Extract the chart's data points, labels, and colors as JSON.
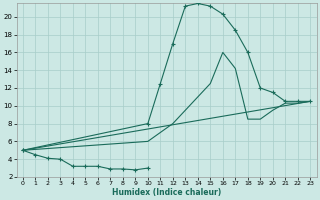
{
  "xlabel": "Humidex (Indice chaleur)",
  "bg_color": "#cce8e4",
  "grid_color": "#a8cec9",
  "line_color": "#1a6b5a",
  "xlim": [
    -0.5,
    23.5
  ],
  "ylim": [
    2,
    21.5
  ],
  "yticks": [
    2,
    4,
    6,
    8,
    10,
    12,
    14,
    16,
    18,
    20
  ],
  "xticks": [
    0,
    1,
    2,
    3,
    4,
    5,
    6,
    7,
    8,
    9,
    10,
    11,
    12,
    13,
    14,
    15,
    16,
    17,
    18,
    19,
    20,
    21,
    22,
    23
  ],
  "line1_x": [
    0,
    1,
    2,
    3,
    4,
    5,
    6,
    7,
    8,
    9,
    10
  ],
  "line1_y": [
    5.0,
    4.5,
    4.1,
    4.0,
    3.2,
    3.2,
    3.2,
    2.9,
    2.9,
    2.8,
    3.0
  ],
  "line2_x": [
    0,
    10,
    11,
    12,
    13,
    14,
    15,
    16,
    17,
    18,
    19,
    20,
    21,
    22,
    23
  ],
  "line2_y": [
    5.0,
    8.0,
    12.5,
    17.0,
    21.2,
    21.5,
    21.2,
    20.3,
    18.5,
    16.0,
    12.0,
    11.5,
    10.5,
    10.5,
    10.5
  ],
  "line3_x": [
    0,
    10,
    11,
    12,
    13,
    14,
    15,
    16,
    17,
    18,
    19,
    20,
    21,
    22,
    23
  ],
  "line3_y": [
    5.0,
    6.0,
    7.0,
    8.0,
    9.5,
    11.0,
    12.5,
    16.0,
    14.2,
    8.5,
    8.5,
    9.5,
    10.3,
    10.3,
    10.5
  ],
  "line4_x": [
    0,
    23
  ],
  "line4_y": [
    5.0,
    10.5
  ]
}
